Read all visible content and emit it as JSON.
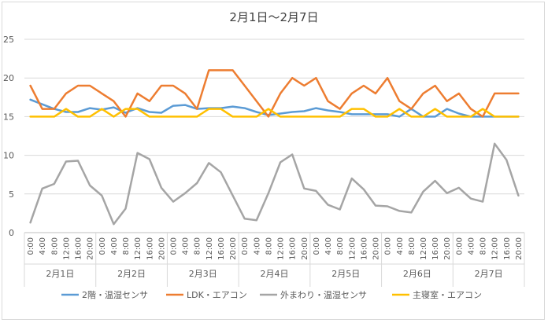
{
  "chart_data": {
    "type": "line",
    "title": "2月1日～2月7日",
    "ylim": [
      0,
      25
    ],
    "yticks": [
      "0",
      "5",
      "10",
      "15",
      "20",
      "25"
    ],
    "grid": true,
    "legend_position": "bottom",
    "x_labels": [
      "0:00",
      "4:00",
      "8:00",
      "12:00",
      "16:00",
      "20:00",
      "0:00",
      "4:00",
      "8:00",
      "12:00",
      "16:00",
      "20:00",
      "0:00",
      "4:00",
      "8:00",
      "12:00",
      "16:00",
      "20:00",
      "0:00",
      "4:00",
      "8:00",
      "12:00",
      "16:00",
      "20:00",
      "0:00",
      "4:00",
      "8:00",
      "12:00",
      "16:00",
      "20:00",
      "0:00",
      "4:00",
      "8:00",
      "12:00",
      "16:00",
      "20:00",
      "0:00",
      "4:00",
      "8:00",
      "12:00",
      "16:00",
      "20:00"
    ],
    "day_labels": [
      "2月1日",
      "2月2日",
      "2月3日",
      "2月4日",
      "2月5日",
      "2月6日",
      "2月7日"
    ],
    "series": [
      {
        "name": "2階・温湿センサ",
        "color": "#5b9bd5",
        "values": [
          17.2,
          16.6,
          16.0,
          15.6,
          15.6,
          16.1,
          15.9,
          16.2,
          15.5,
          16.1,
          15.6,
          15.5,
          16.4,
          16.5,
          16.0,
          16.1,
          16.1,
          16.3,
          16.1,
          15.6,
          15.2,
          15.4,
          15.6,
          15.7,
          16.1,
          15.8,
          15.6,
          15.3,
          15.3,
          15.3,
          15.3,
          15.0,
          16.0,
          15.0,
          15.0,
          16.0,
          15.4,
          15.0,
          15.0,
          15.0,
          15.0,
          15.0
        ]
      },
      {
        "name": "LDK・エアコン",
        "color": "#ed7d31",
        "values": [
          19,
          16,
          16,
          18,
          19,
          19,
          18,
          17,
          15,
          18,
          17,
          19,
          19,
          18,
          16,
          21,
          21,
          21,
          19,
          17,
          15,
          18,
          20,
          19,
          20,
          17,
          16,
          18,
          19,
          18,
          20,
          17,
          16,
          18,
          19,
          17,
          18,
          16,
          15,
          18,
          18,
          18
        ]
      },
      {
        "name": "外まわり・温湿センサ",
        "color": "#a5a5a5",
        "values": [
          1.3,
          5.7,
          6.3,
          9.2,
          9.3,
          6.1,
          4.8,
          1.1,
          3.1,
          10.3,
          9.5,
          5.8,
          4.0,
          5.1,
          6.4,
          9.0,
          7.8,
          4.8,
          1.8,
          1.6,
          5.1,
          9.1,
          10.1,
          5.7,
          5.4,
          3.6,
          3.0,
          7.0,
          5.6,
          3.5,
          3.4,
          2.8,
          2.6,
          5.3,
          6.7,
          5.1,
          5.8,
          4.4,
          4.0,
          11.5,
          9.4,
          4.8
        ]
      },
      {
        "name": "主寝室・エアコン",
        "color": "#ffc000",
        "values": [
          15,
          15,
          15,
          16,
          15,
          15,
          16,
          15,
          16,
          16,
          15,
          15,
          15,
          15,
          15,
          16,
          16,
          15,
          15,
          15,
          16,
          15,
          15,
          15,
          15,
          15,
          15,
          16,
          16,
          15,
          15,
          16,
          15,
          15,
          16,
          15,
          15,
          15,
          16,
          15,
          15,
          15
        ]
      }
    ]
  }
}
